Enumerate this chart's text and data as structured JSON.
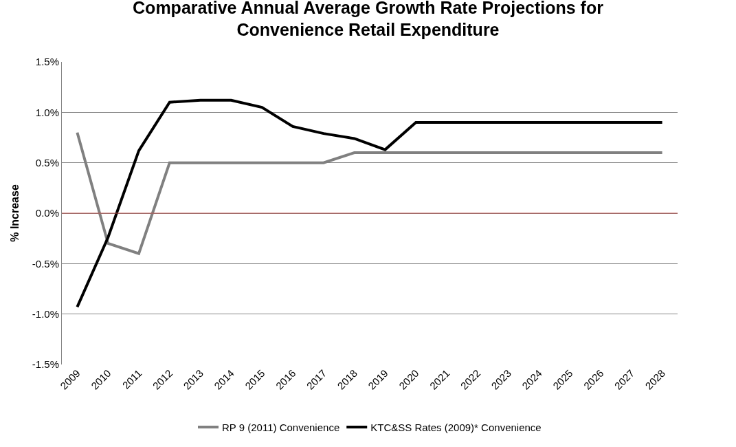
{
  "chart_data": {
    "type": "line",
    "title": "Comparative Annual Average Growth Rate Projections for\nConvenience Retail Expenditure",
    "ylabel": "% Increase",
    "categories": [
      "2009",
      "2010",
      "2011",
      "2012",
      "2013",
      "2014",
      "2015",
      "2016",
      "2017",
      "2018",
      "2019",
      "2020",
      "2021",
      "2022",
      "2023",
      "2024",
      "2025",
      "2026",
      "2027",
      "2028"
    ],
    "series": [
      {
        "name": "RP 9 (2011) Convenience",
        "color": "#808080",
        "values": [
          0.8,
          -0.3,
          -0.4,
          0.5,
          0.5,
          0.5,
          0.5,
          0.5,
          0.5,
          0.6,
          0.6,
          0.6,
          0.6,
          0.6,
          0.6,
          0.6,
          0.6,
          0.6,
          0.6,
          0.6
        ]
      },
      {
        "name": "KTC&SS Rates (2009)* Convenience",
        "color": "#000000",
        "values": [
          -0.93,
          -0.24,
          0.62,
          1.1,
          1.12,
          1.12,
          1.05,
          0.86,
          0.79,
          0.74,
          0.63,
          0.9,
          0.9,
          0.9,
          0.9,
          0.9,
          0.9,
          0.9,
          0.9,
          0.9
        ]
      }
    ],
    "ylim": [
      -1.5,
      1.5
    ],
    "yticks": [
      {
        "value": -1.5,
        "label": "-1.5%"
      },
      {
        "value": -1.0,
        "label": "-1.0%"
      },
      {
        "value": -0.5,
        "label": "-0.5%"
      },
      {
        "value": 0.0,
        "label": "0.0%"
      },
      {
        "value": 0.5,
        "label": "0.5%"
      },
      {
        "value": 1.0,
        "label": "1.0%"
      },
      {
        "value": 1.5,
        "label": "1.5%"
      }
    ],
    "ref_lines": [
      {
        "axis": "y",
        "value": 0,
        "label": null,
        "color": "#c0504d"
      }
    ],
    "grid": "y",
    "legend": "bottom",
    "marker": "none",
    "line_style": "solid"
  }
}
